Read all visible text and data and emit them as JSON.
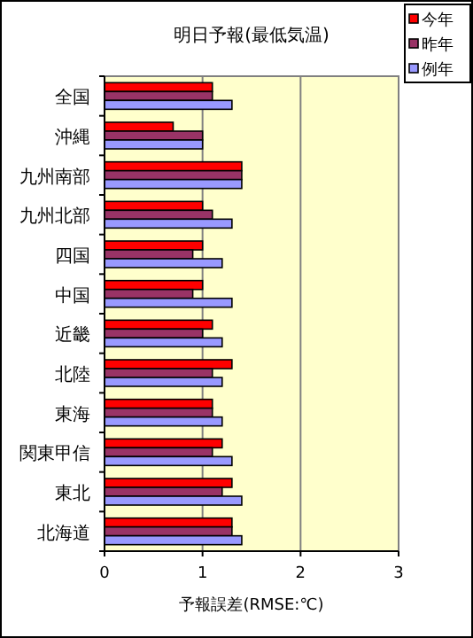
{
  "chart_data": {
    "type": "bar",
    "orientation": "horizontal",
    "title": "明日予報(最低気温)",
    "xlabel": "予報誤差(RMSE:℃)",
    "categories": [
      "全国",
      "沖縄",
      "九州南部",
      "九州北部",
      "四国",
      "中国",
      "近畿",
      "北陸",
      "東海",
      "関東甲信",
      "東北",
      "北海道"
    ],
    "series": [
      {
        "name": "今年",
        "color": "#ff0000",
        "values": [
          1.1,
          0.7,
          1.4,
          1.0,
          1.0,
          1.0,
          1.1,
          1.3,
          1.1,
          1.2,
          1.3,
          1.3
        ]
      },
      {
        "name": "昨年",
        "color": "#993366",
        "values": [
          1.1,
          1.0,
          1.4,
          1.1,
          0.9,
          0.9,
          1.0,
          1.1,
          1.1,
          1.1,
          1.2,
          1.3
        ]
      },
      {
        "name": "例年",
        "color": "#9999ff",
        "values": [
          1.3,
          1.0,
          1.4,
          1.3,
          1.2,
          1.3,
          1.2,
          1.2,
          1.2,
          1.3,
          1.4,
          1.4
        ]
      }
    ],
    "xlim": [
      0,
      3
    ],
    "xticks": [
      0,
      1,
      2,
      3
    ],
    "grid": "x",
    "legend": "top right"
  }
}
